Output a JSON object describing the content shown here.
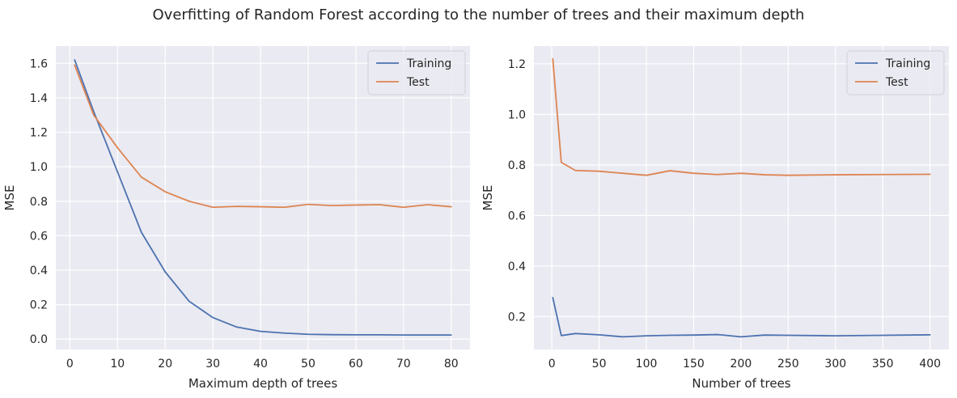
{
  "suptitle": "Overfitting of Random Forest according to the number of trees and their maximum depth",
  "colors": {
    "training": "#4c72b0",
    "test": "#dd8452",
    "axes_bg": "#eaeaf2",
    "grid": "#ffffff"
  },
  "chart_data": [
    {
      "type": "line",
      "title": "",
      "xlabel": "Maximum depth of trees",
      "ylabel": "MSE",
      "xlim": [
        -2.95,
        83.95
      ],
      "ylim": [
        -0.06,
        1.7
      ],
      "xticks": [
        0,
        10,
        20,
        30,
        40,
        50,
        60,
        70,
        80
      ],
      "xtick_labels": [
        "0",
        "10",
        "20",
        "30",
        "40",
        "50",
        "60",
        "70",
        "80"
      ],
      "yticks": [
        0.0,
        0.2,
        0.4,
        0.6,
        0.8,
        1.0,
        1.2,
        1.4,
        1.6
      ],
      "ytick_labels": [
        "0.0",
        "0.2",
        "0.4",
        "0.6",
        "0.8",
        "1.0",
        "1.2",
        "1.4",
        "1.6"
      ],
      "grid": true,
      "legend_position": "top-right",
      "x": [
        1,
        5,
        10,
        15,
        20,
        25,
        30,
        35,
        40,
        45,
        50,
        55,
        60,
        65,
        70,
        75,
        80
      ],
      "series": [
        {
          "name": "Training",
          "color": "#4c72b0",
          "values": [
            1.62,
            1.32,
            0.97,
            0.62,
            0.39,
            0.22,
            0.125,
            0.07,
            0.045,
            0.035,
            0.028,
            0.026,
            0.025,
            0.025,
            0.024,
            0.024,
            0.024
          ]
        },
        {
          "name": "Test",
          "color": "#dd8452",
          "values": [
            1.59,
            1.3,
            1.11,
            0.94,
            0.855,
            0.8,
            0.765,
            0.77,
            0.768,
            0.765,
            0.782,
            0.775,
            0.778,
            0.78,
            0.765,
            0.78,
            0.768
          ]
        }
      ]
    },
    {
      "type": "line",
      "title": "",
      "xlabel": "Number of trees",
      "ylabel": "MSE",
      "xlim": [
        -18.95,
        419.95
      ],
      "ylim": [
        0.07,
        1.27
      ],
      "xticks": [
        0,
        50,
        100,
        150,
        200,
        250,
        300,
        350,
        400
      ],
      "xtick_labels": [
        "0",
        "50",
        "100",
        "150",
        "200",
        "250",
        "300",
        "350",
        "400"
      ],
      "yticks": [
        0.2,
        0.4,
        0.6,
        0.8,
        1.0,
        1.2
      ],
      "ytick_labels": [
        "0.2",
        "0.4",
        "0.6",
        "0.8",
        "1.0",
        "1.2"
      ],
      "grid": true,
      "legend_position": "top-right",
      "x": [
        1,
        10,
        25,
        50,
        75,
        100,
        125,
        150,
        175,
        200,
        225,
        250,
        300,
        350,
        400
      ],
      "series": [
        {
          "name": "Training",
          "color": "#4c72b0",
          "values": [
            0.275,
            0.125,
            0.133,
            0.128,
            0.12,
            0.124,
            0.126,
            0.127,
            0.129,
            0.12,
            0.127,
            0.126,
            0.124,
            0.126,
            0.128
          ]
        },
        {
          "name": "Test",
          "color": "#dd8452",
          "values": [
            1.22,
            0.81,
            0.778,
            0.775,
            0.767,
            0.759,
            0.777,
            0.767,
            0.762,
            0.767,
            0.761,
            0.759,
            0.761,
            0.762,
            0.763
          ]
        }
      ]
    }
  ]
}
